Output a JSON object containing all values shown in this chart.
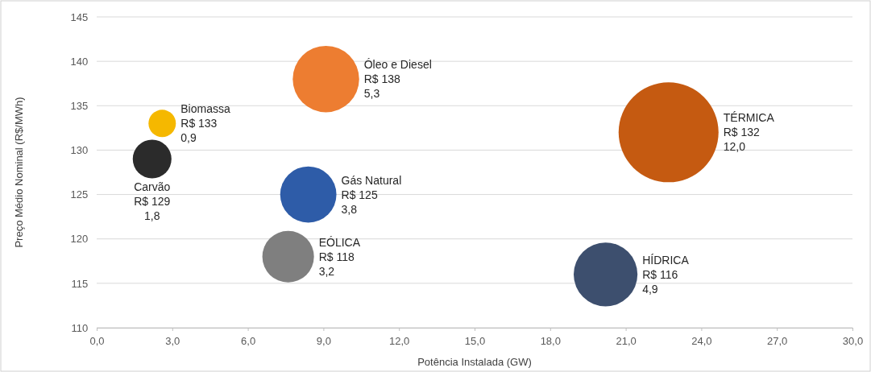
{
  "chart_data": {
    "type": "bubble",
    "xlabel": "Potência Instalada (GW)",
    "ylabel": "Preço Médio Nominal (R$/MWh)",
    "xlim": [
      0,
      30
    ],
    "xticks": [
      {
        "value": 0,
        "label": "0,0"
      },
      {
        "value": 3,
        "label": "3,0"
      },
      {
        "value": 6,
        "label": "6,0"
      },
      {
        "value": 9,
        "label": "9,0"
      },
      {
        "value": 12,
        "label": "12,0"
      },
      {
        "value": 15,
        "label": "15,0"
      },
      {
        "value": 18,
        "label": "18,0"
      },
      {
        "value": 21,
        "label": "21,0"
      },
      {
        "value": 24,
        "label": "24,0"
      },
      {
        "value": 27,
        "label": "27,0"
      },
      {
        "value": 30,
        "label": "30,0"
      }
    ],
    "ylim": [
      110,
      145
    ],
    "yticks": [
      110,
      115,
      120,
      125,
      130,
      135,
      140,
      145
    ],
    "grid": "y",
    "legend": false,
    "series": [
      {
        "name": "Biomassa",
        "color": "#f5b800",
        "x": [
          2.6
        ],
        "values": [
          133
        ],
        "sizes": [
          0.075
        ],
        "value_labels": [
          "R$ 133\n0,9"
        ]
      },
      {
        "name": "Óleo e Diesel",
        "color": "#ed7d31",
        "x": [
          9.1
        ],
        "values": [
          138
        ],
        "sizes": [
          0.442
        ],
        "value_labels": [
          "R$ 138\n5,3"
        ]
      },
      {
        "name": "TÉRMICA",
        "color": "#c55a11",
        "x": [
          22.7
        ],
        "values": [
          132
        ],
        "sizes": [
          1
        ],
        "value_labels": [
          "R$ 132\n12,0"
        ]
      },
      {
        "name": "Carvão",
        "color": "#2b2b2b",
        "x": [
          2.2
        ],
        "values": [
          129
        ],
        "sizes": [
          0.15
        ],
        "value_labels": [
          "R$ 129\n1,8"
        ]
      },
      {
        "name": "Gás Natural",
        "color": "#2e5ca8",
        "x": [
          8.4
        ],
        "values": [
          125
        ],
        "sizes": [
          0.317
        ],
        "value_labels": [
          "R$ 125\n3,8"
        ]
      },
      {
        "name": "EÓLICA",
        "color": "#7f7f7f",
        "x": [
          7.6
        ],
        "values": [
          118
        ],
        "sizes": [
          0.267
        ],
        "value_labels": [
          "R$ 118\n3,2"
        ]
      },
      {
        "name": "HÍDRICA",
        "color": "#3d4f6e",
        "x": [
          20.2
        ],
        "values": [
          116
        ],
        "sizes": [
          0.408
        ],
        "value_labels": [
          "R$ 116\n4,9"
        ]
      }
    ]
  }
}
